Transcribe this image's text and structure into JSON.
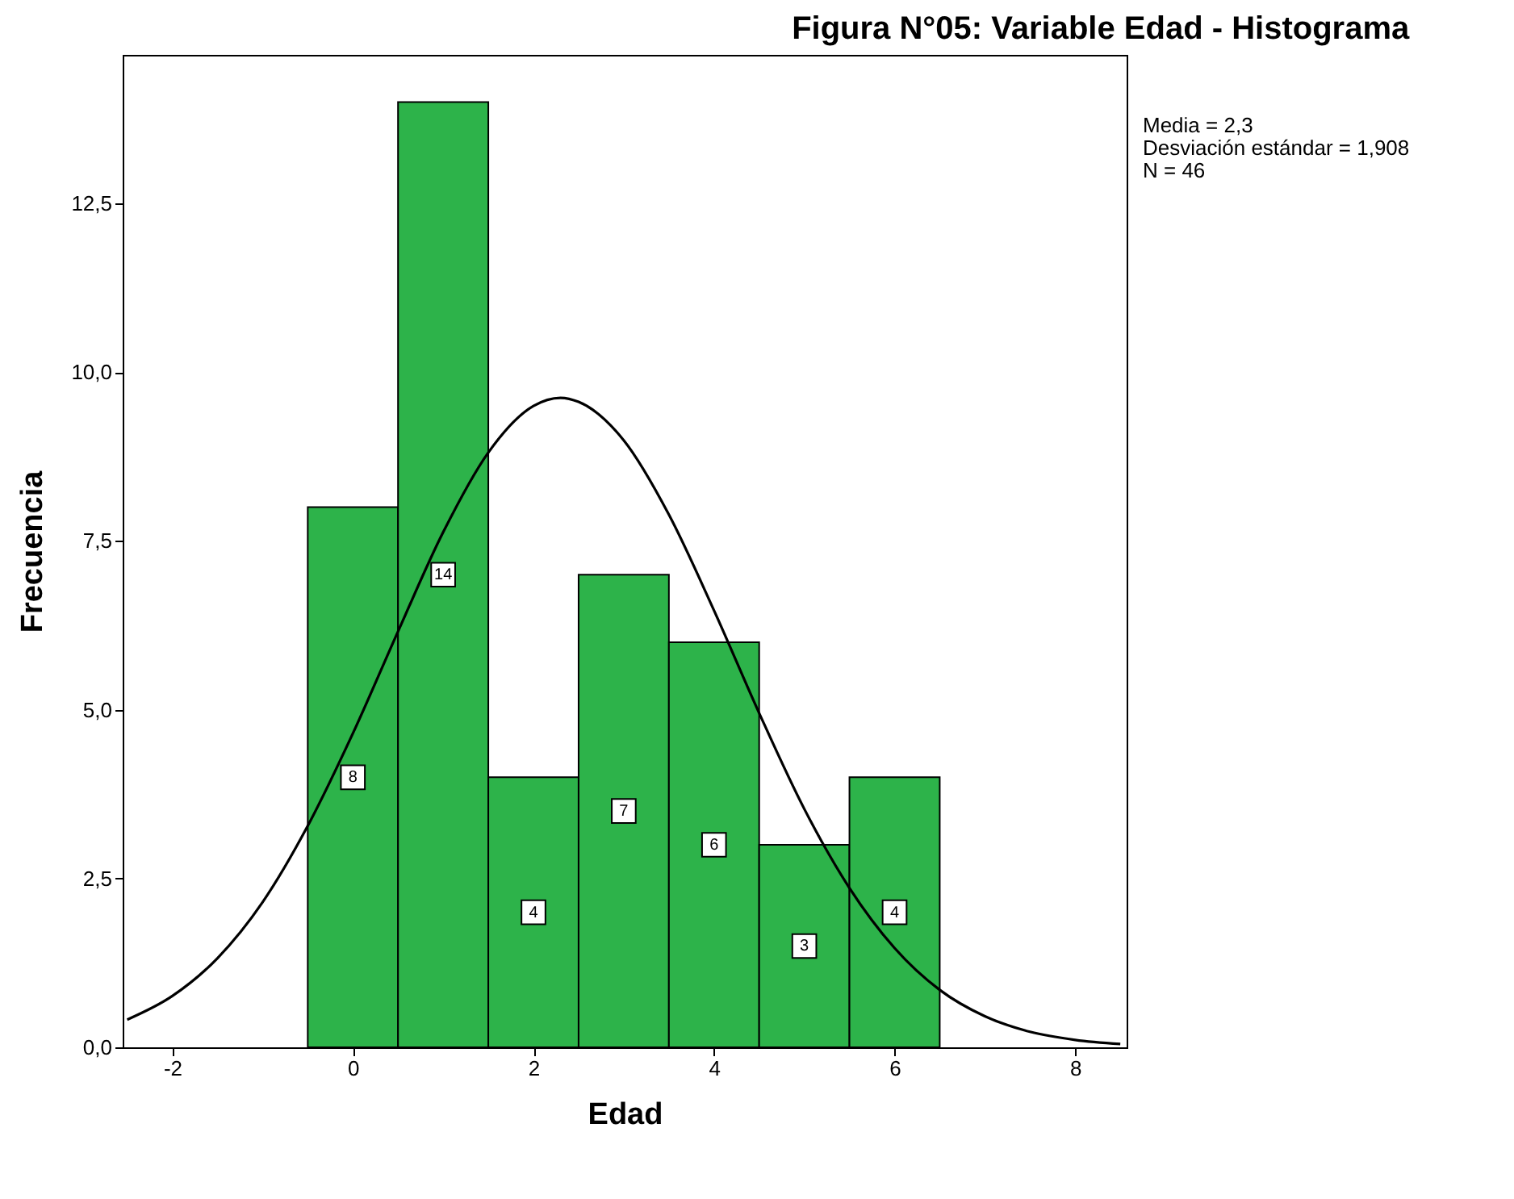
{
  "chart_data": {
    "type": "histogram",
    "title": "Figura N°05: Variable Edad - Histograma",
    "xlabel": "Edad",
    "ylabel": "Frecuencia",
    "series": [
      {
        "bins": [
          -0.5,
          0.5,
          1.5,
          2.5,
          3.5,
          4.5,
          5.5,
          6.5
        ],
        "values": [
          8,
          14,
          4,
          7,
          6,
          3,
          4
        ],
        "value_labels": [
          "8",
          "14",
          "4",
          "7",
          "6",
          "3",
          "4"
        ],
        "color": "#2db34a"
      },
      {
        "type": "line",
        "color": "#000000",
        "x": [
          -2.5,
          -2,
          -1.5,
          -1,
          -0.5,
          0,
          0.5,
          1,
          1.5,
          2,
          2.3,
          2.5,
          3,
          3.5,
          4,
          4.5,
          5,
          5.5,
          6,
          6.5,
          7,
          7.5,
          8,
          8.5
        ],
        "values": [
          0.41,
          0.76,
          1.32,
          2.15,
          3.28,
          4.65,
          6.16,
          7.63,
          8.81,
          9.5,
          9.62,
          9.56,
          8.99,
          7.89,
          6.47,
          4.95,
          3.53,
          2.36,
          1.47,
          0.85,
          0.46,
          0.23,
          0.11,
          0.05
        ]
      }
    ],
    "annotations": [
      "Media = 2,3",
      "Desviación estándar = 1,908",
      "N = 46"
    ],
    "xlim": [
      -2.55,
      8.57
    ],
    "xticks": [
      -2,
      0,
      2,
      4,
      6,
      8
    ],
    "ylim": [
      0,
      14.7
    ],
    "yticks": [
      {
        "value": 0,
        "label": "0,0"
      },
      {
        "value": 2.5,
        "label": "2,5"
      },
      {
        "value": 5,
        "label": "5,0"
      },
      {
        "value": 7.5,
        "label": "7,5"
      },
      {
        "value": 10,
        "label": "10,0"
      },
      {
        "value": 12.5,
        "label": "12,5"
      }
    ],
    "grid": false
  }
}
